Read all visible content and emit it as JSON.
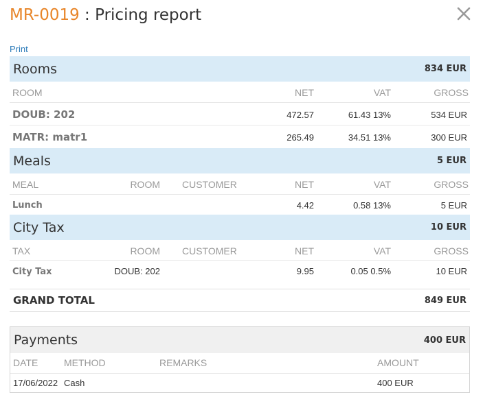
{
  "header": {
    "code": "MR-0019",
    "separator": " : ",
    "title": "Pricing report"
  },
  "print_label": "Print",
  "rooms": {
    "title": "Rooms",
    "total": "834 EUR",
    "columns": {
      "room": "ROOM",
      "net": "NET",
      "vat": "VAT",
      "gross": "GROSS"
    },
    "rows": [
      {
        "room": "DOUB: 202",
        "net": "472.57",
        "vat": "61.43 13%",
        "gross": "534 EUR"
      },
      {
        "room": "MATR: matr1",
        "net": "265.49",
        "vat": "34.51 13%",
        "gross": "300 EUR"
      }
    ]
  },
  "meals": {
    "title": "Meals",
    "total": "5 EUR",
    "columns": {
      "meal": "MEAL",
      "room": "ROOM",
      "customer": "CUSTOMER",
      "net": "NET",
      "vat": "VAT",
      "gross": "GROSS"
    },
    "rows": [
      {
        "meal": "Lunch",
        "room": "",
        "customer": "",
        "net": "4.42",
        "vat": "0.58 13%",
        "gross": "5 EUR"
      }
    ]
  },
  "city_tax": {
    "title": "City Tax",
    "total": "10 EUR",
    "columns": {
      "tax": "TAX",
      "room": "ROOM",
      "customer": "CUSTOMER",
      "net": "NET",
      "vat": "VAT",
      "gross": "GROSS"
    },
    "rows": [
      {
        "tax": "City Tax",
        "room": "DOUB: 202",
        "customer": "",
        "net": "9.95",
        "vat": "0.05 0.5%",
        "gross": "10 EUR"
      }
    ]
  },
  "grand_total": {
    "label": "GRAND TOTAL",
    "amount": "849 EUR"
  },
  "payments": {
    "title": "Payments",
    "total": "400 EUR",
    "columns": {
      "date": "DATE",
      "method": "METHOD",
      "remarks": "REMARKS",
      "amount": "AMOUNT"
    },
    "rows": [
      {
        "date": "17/06/2022",
        "method": "Cash",
        "remarks": "",
        "amount": "400 EUR"
      }
    ]
  },
  "icons": {
    "close": "close-icon"
  }
}
